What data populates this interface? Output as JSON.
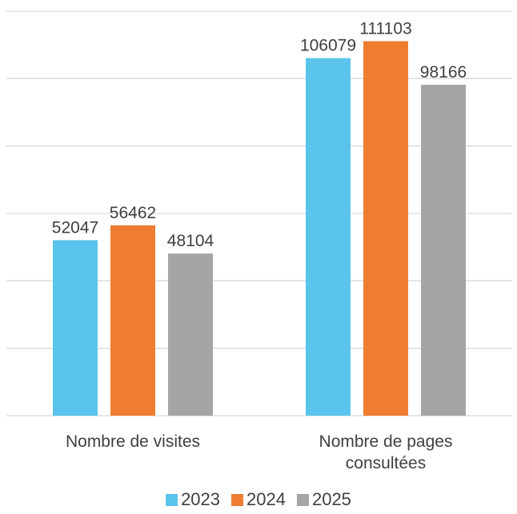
{
  "chart_data": {
    "type": "bar",
    "categories": [
      [
        "Nombre de visites"
      ],
      [
        "Nombre de pages",
        "consultées"
      ]
    ],
    "series": [
      {
        "name": "2023",
        "color": "#5bc4ec",
        "values": [
          52047,
          106079
        ]
      },
      {
        "name": "2024",
        "color": "#ee7d31",
        "values": [
          56462,
          111103
        ]
      },
      {
        "name": "2025",
        "color": "#a5a5a5",
        "values": [
          48104,
          98166
        ]
      }
    ],
    "ylim": [
      0,
      120000
    ],
    "ytick_step": 20000,
    "grid": true,
    "legend": "bottom"
  }
}
